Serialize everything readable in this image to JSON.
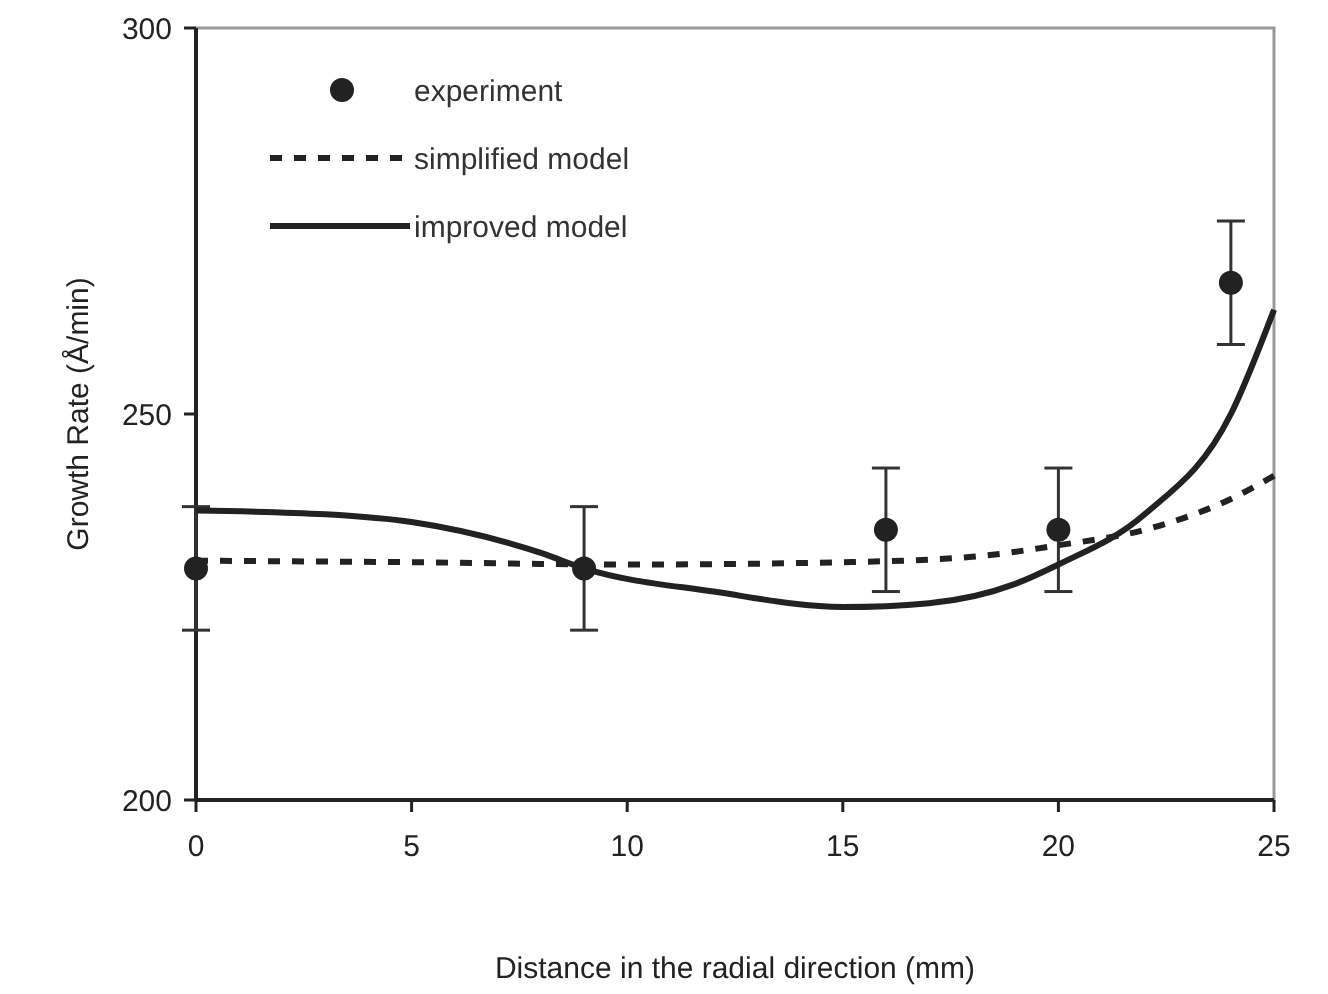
{
  "chart_data": {
    "type": "scatter",
    "xlabel": "Distance in the radial direction (mm)",
    "ylabel": "Growth Rate (Å/min)",
    "xlim": [
      0,
      25
    ],
    "xticks": [
      0,
      5,
      10,
      15,
      20,
      25
    ],
    "ylim": [
      200,
      300
    ],
    "yticks": [
      200,
      250,
      300
    ],
    "legend": "top left",
    "grid": false,
    "series": [
      {
        "name": "experiment",
        "type": "scatter",
        "color": "#222222",
        "marker": "circle",
        "x": [
          0,
          9,
          16,
          20,
          24
        ],
        "values": [
          230,
          230,
          235,
          235,
          267
        ],
        "errors": [
          8,
          8,
          8,
          8,
          8
        ]
      },
      {
        "name": "simplified model",
        "type": "line",
        "color": "#222222",
        "line_style": "dashed",
        "marker": "none",
        "x": [
          0,
          5,
          10,
          15,
          18,
          20,
          22,
          24,
          25
        ],
        "values": [
          231,
          230.8,
          230.5,
          230.8,
          231.5,
          233,
          235,
          239,
          242
        ]
      },
      {
        "name": "improved model",
        "type": "line",
        "color": "#222222",
        "line_style": "solid",
        "marker": "none",
        "x": [
          0,
          3,
          5,
          8,
          9,
          12,
          15,
          17,
          19,
          20,
          22,
          24,
          25
        ],
        "values": [
          237.5,
          237,
          236,
          232,
          230,
          227,
          225,
          225.5,
          228,
          230.5,
          237,
          250,
          263.5
        ]
      }
    ]
  }
}
